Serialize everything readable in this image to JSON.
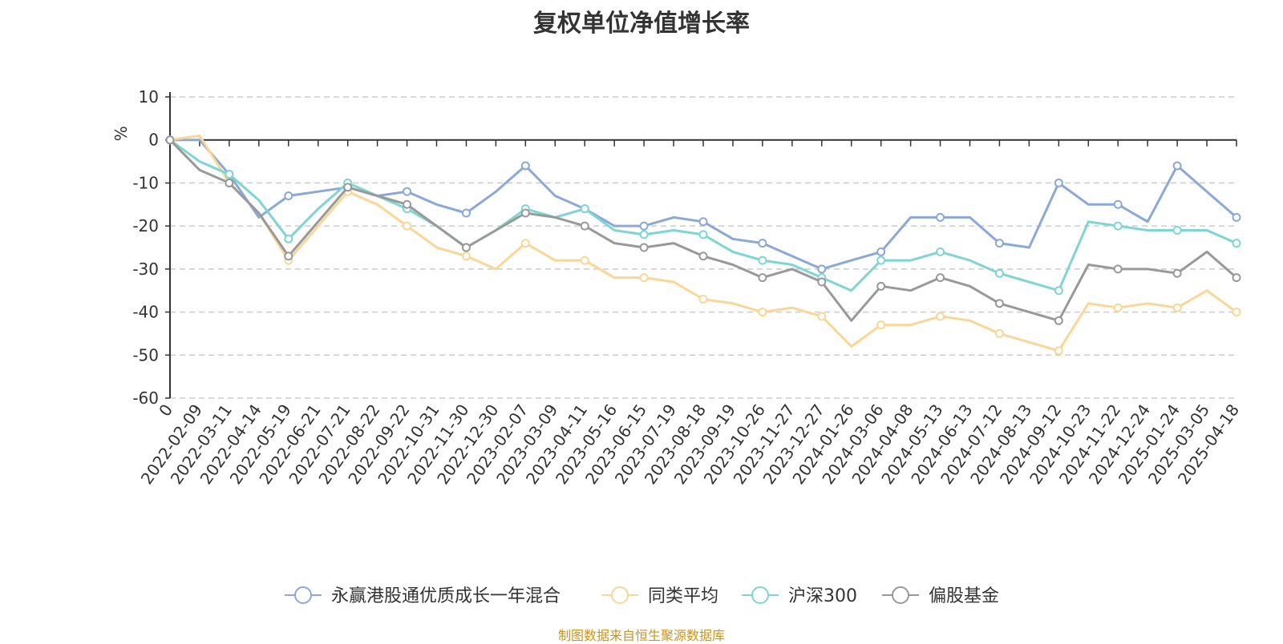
{
  "chart_data": {
    "type": "line",
    "title": "复权单位净值增长率",
    "ylabel": "%",
    "xlabel": "",
    "ylim": [
      -60,
      10
    ],
    "yticks": [
      10,
      0,
      -10,
      -20,
      -30,
      -40,
      -50,
      -60
    ],
    "grid": "horizontal dashed",
    "legend_position": "bottom",
    "source": "制图数据来自恒生聚源数据库",
    "x_ticks": [
      "0",
      "2022-02-09",
      "2022-03-11",
      "2022-04-14",
      "2022-05-19",
      "2022-06-21",
      "2022-07-21",
      "2022-08-22",
      "2022-09-22",
      "2022-10-31",
      "2022-11-30",
      "2022-12-30",
      "2023-02-07",
      "2023-03-09",
      "2023-04-11",
      "2023-05-16",
      "2023-06-15",
      "2023-07-19",
      "2023-08-18",
      "2023-09-19",
      "2023-10-26",
      "2023-11-27",
      "2023-12-27",
      "2024-01-26",
      "2024-03-06",
      "2024-04-08",
      "2024-05-13",
      "2024-06-13",
      "2024-07-12",
      "2024-08-13",
      "2024-09-12",
      "2024-10-23",
      "2024-11-22",
      "2024-12-24",
      "2025-01-24",
      "2025-03-05",
      "2025-04-18"
    ],
    "series": [
      {
        "name": "永赢港股通优质成长一年混合",
        "color": "#8aa8d8",
        "values": [
          0,
          0,
          -8,
          -18,
          -13,
          -12,
          -11,
          -13,
          -12,
          -15,
          -17,
          -12,
          -6,
          -13,
          -16,
          -20,
          -20,
          -18,
          -19,
          -23,
          -24,
          -27,
          -30,
          -28,
          -26,
          -18,
          -18,
          -18,
          -24,
          -25,
          -10,
          -15,
          -15,
          -19,
          -6,
          -12,
          -18
        ]
      },
      {
        "name": "同类平均",
        "color": "#fad697",
        "values": [
          0,
          1,
          -10,
          -17,
          -28,
          -20,
          -12,
          -15,
          -20,
          -25,
          -27,
          -30,
          -24,
          -28,
          -28,
          -32,
          -32,
          -33,
          -37,
          -38,
          -40,
          -39,
          -41,
          -48,
          -43,
          -43,
          -41,
          -42,
          -45,
          -47,
          -49,
          -38,
          -39,
          -38,
          -39,
          -35,
          -40
        ]
      },
      {
        "name": "沪深300",
        "color": "#7fd4d4",
        "values": [
          0,
          -5,
          -8,
          -14,
          -23,
          -16,
          -10,
          -13,
          -16,
          -20,
          -25,
          -21,
          -16,
          -18,
          -16,
          -21,
          -22,
          -21,
          -22,
          -26,
          -28,
          -29,
          -32,
          -35,
          -28,
          -28,
          -26,
          -28,
          -31,
          -33,
          -35,
          -19,
          -20,
          -21,
          -21,
          -21,
          -24
        ]
      },
      {
        "name": "偏股基金",
        "color": "#999999",
        "values": [
          0,
          -7,
          -10,
          -17,
          -27,
          -19,
          -11,
          -13,
          -15,
          -20,
          -25,
          -21,
          -17,
          -18,
          -20,
          -24,
          -25,
          -24,
          -27,
          -29,
          -32,
          -30,
          -33,
          -42,
          -34,
          -35,
          -32,
          -34,
          -38,
          -40,
          -42,
          -29,
          -30,
          -30,
          -31,
          -26,
          -32
        ]
      }
    ]
  }
}
